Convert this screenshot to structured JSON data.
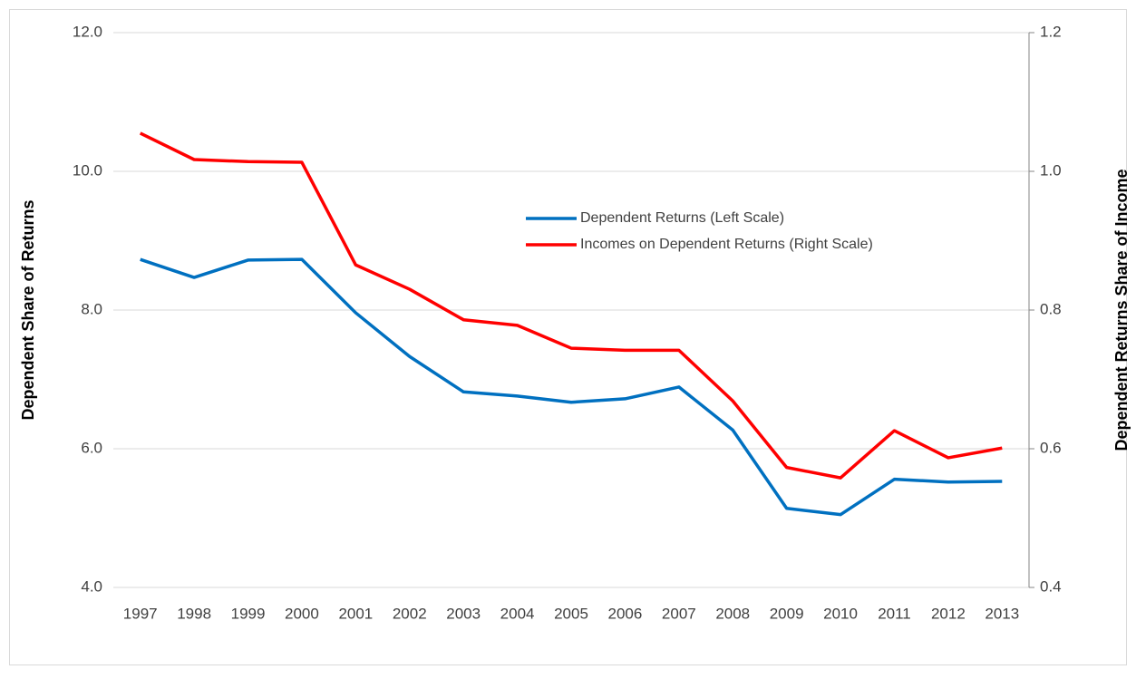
{
  "chart_data": {
    "type": "line",
    "categories": [
      "1997",
      "1998",
      "1999",
      "2000",
      "2001",
      "2002",
      "2003",
      "2004",
      "2005",
      "2006",
      "2007",
      "2008",
      "2009",
      "2010",
      "2011",
      "2012",
      "2013"
    ],
    "y_label": "Dependent Share of Returns",
    "y2_label": "Dependent Returns Share of Income",
    "ylim": [
      4,
      12
    ],
    "yticks": [
      {
        "value": 4,
        "label": "4.0"
      },
      {
        "value": 6,
        "label": "6.0"
      },
      {
        "value": 8,
        "label": "8.0"
      },
      {
        "value": 10,
        "label": "10.0"
      },
      {
        "value": 12,
        "label": "12.0"
      }
    ],
    "y2lim": [
      0.4,
      1.2
    ],
    "y2ticks": [
      0.4,
      0.6,
      0.8,
      {
        "value": 1,
        "label": "1.0"
      },
      1.2
    ],
    "grid": true,
    "series": [
      {
        "name": "Dependent Returns (Left Scale)",
        "color": "#0070c0",
        "values": [
          8.73,
          8.47,
          8.72,
          8.73,
          7.96,
          7.33,
          6.82,
          6.76,
          6.67,
          6.72,
          6.89,
          6.27,
          5.14,
          5.05,
          5.56,
          5.52,
          5.53
        ]
      },
      {
        "name": "Incomes on Dependent Returns (Right Scale)",
        "color": "#ff0000",
        "axis": "y2",
        "values": [
          1.055,
          1.017,
          1.014,
          1.013,
          0.865,
          0.83,
          0.786,
          0.778,
          0.745,
          0.742,
          0.742,
          0.669,
          0.573,
          0.558,
          0.626,
          0.587,
          0.601
        ]
      }
    ]
  }
}
